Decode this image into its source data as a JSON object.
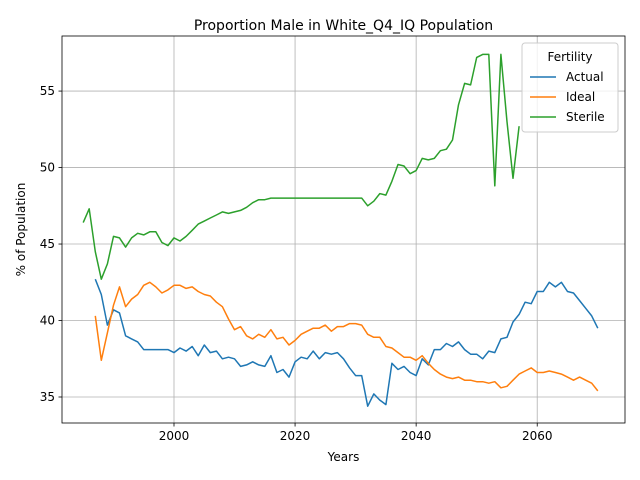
{
  "chart_data": {
    "type": "line",
    "title": "Proportion Male in White_Q4_IQ Population",
    "xlabel": "Years",
    "ylabel": "% of Population",
    "xlim": [
      1981.5,
      2074.5
    ],
    "ylim": [
      33.3,
      58.6
    ],
    "x_ticks": [
      2000,
      2020,
      2040,
      2060
    ],
    "y_ticks": [
      35,
      40,
      45,
      50,
      55
    ],
    "grid": true,
    "legend": {
      "title": "Fertility",
      "position": "top-right"
    },
    "series": [
      {
        "name": "Actual",
        "color": "#1f77b4",
        "x": [
          1987,
          1988,
          1989,
          1990,
          1991,
          1992,
          1993,
          1994,
          1995,
          1996,
          1997,
          1998,
          1999,
          2000,
          2001,
          2002,
          2003,
          2004,
          2005,
          2006,
          2007,
          2008,
          2009,
          2010,
          2011,
          2012,
          2013,
          2014,
          2015,
          2016,
          2017,
          2018,
          2019,
          2020,
          2021,
          2022,
          2023,
          2024,
          2025,
          2026,
          2027,
          2028,
          2029,
          2030,
          2031,
          2032,
          2033,
          2034,
          2035,
          2036,
          2037,
          2038,
          2039,
          2040,
          2041,
          2042,
          2043,
          2044,
          2045,
          2046,
          2047,
          2048,
          2049,
          2050,
          2051,
          2052,
          2053,
          2054,
          2055,
          2056,
          2057,
          2058,
          2059,
          2060,
          2061,
          2062,
          2063,
          2064,
          2065,
          2066,
          2067,
          2068,
          2069,
          2070
        ],
        "y": [
          42.7,
          41.7,
          39.7,
          40.7,
          40.5,
          39.0,
          38.8,
          38.6,
          38.1,
          38.1,
          38.1,
          38.1,
          38.1,
          37.9,
          38.2,
          38.0,
          38.3,
          37.7,
          38.4,
          37.9,
          38.0,
          37.5,
          37.6,
          37.5,
          37.0,
          37.1,
          37.3,
          37.1,
          37.0,
          37.7,
          36.6,
          36.8,
          36.3,
          37.3,
          37.6,
          37.5,
          38.0,
          37.5,
          37.9,
          37.8,
          37.9,
          37.5,
          36.9,
          36.4,
          36.4,
          34.4,
          35.2,
          34.8,
          34.5,
          37.2,
          36.8,
          37.0,
          36.6,
          36.4,
          37.5,
          37.1,
          38.1,
          38.1,
          38.5,
          38.3,
          38.6,
          38.1,
          37.8,
          37.8,
          37.5,
          38.0,
          37.9,
          38.8,
          38.9,
          39.9,
          40.4,
          41.2,
          41.1,
          41.9,
          41.9,
          42.5,
          42.2,
          42.5,
          41.9,
          41.8,
          41.3,
          40.8,
          40.3,
          39.5
        ]
      },
      {
        "name": "Ideal",
        "color": "#ff7f0e",
        "x": [
          1987,
          1988,
          1989,
          1990,
          1991,
          1992,
          1993,
          1994,
          1995,
          1996,
          1997,
          1998,
          1999,
          2000,
          2001,
          2002,
          2003,
          2004,
          2005,
          2006,
          2007,
          2008,
          2009,
          2010,
          2011,
          2012,
          2013,
          2014,
          2015,
          2016,
          2017,
          2018,
          2019,
          2020,
          2021,
          2022,
          2023,
          2024,
          2025,
          2026,
          2027,
          2028,
          2029,
          2030,
          2031,
          2032,
          2033,
          2034,
          2035,
          2036,
          2037,
          2038,
          2039,
          2040,
          2041,
          2042,
          2043,
          2044,
          2045,
          2046,
          2047,
          2048,
          2049,
          2050,
          2051,
          2052,
          2053,
          2054,
          2055,
          2056,
          2057,
          2058,
          2059,
          2060,
          2061,
          2062,
          2063,
          2064,
          2065,
          2066,
          2067,
          2068,
          2069,
          2070
        ],
        "y": [
          40.3,
          37.4,
          39.2,
          41.0,
          42.2,
          40.9,
          41.4,
          41.7,
          42.3,
          42.5,
          42.2,
          41.8,
          42.0,
          42.3,
          42.3,
          42.1,
          42.2,
          41.9,
          41.7,
          41.6,
          41.2,
          40.9,
          40.1,
          39.4,
          39.6,
          39.0,
          38.8,
          39.1,
          38.9,
          39.4,
          38.8,
          38.9,
          38.4,
          38.7,
          39.1,
          39.3,
          39.5,
          39.5,
          39.7,
          39.3,
          39.6,
          39.6,
          39.8,
          39.8,
          39.7,
          39.1,
          38.9,
          38.9,
          38.3,
          38.2,
          37.9,
          37.6,
          37.6,
          37.4,
          37.7,
          37.2,
          36.8,
          36.5,
          36.3,
          36.2,
          36.3,
          36.1,
          36.1,
          36.0,
          36.0,
          35.9,
          36.0,
          35.6,
          35.7,
          36.1,
          36.5,
          36.7,
          36.9,
          36.6,
          36.6,
          36.7,
          36.6,
          36.5,
          36.3,
          36.1,
          36.3,
          36.1,
          35.9,
          35.4
        ]
      },
      {
        "name": "Sterile",
        "color": "#2ca02c",
        "x": [
          1985,
          1986,
          1987,
          1988,
          1989,
          1990,
          1991,
          1992,
          1993,
          1994,
          1995,
          1996,
          1997,
          1998,
          1999,
          2000,
          2001,
          2002,
          2003,
          2004,
          2005,
          2006,
          2007,
          2008,
          2009,
          2010,
          2011,
          2012,
          2013,
          2014,
          2015,
          2016,
          2017,
          2018,
          2019,
          2020,
          2021,
          2022,
          2023,
          2024,
          2025,
          2026,
          2027,
          2028,
          2029,
          2030,
          2031,
          2032,
          2033,
          2034,
          2035,
          2036,
          2037,
          2038,
          2039,
          2040,
          2041,
          2042,
          2043,
          2044,
          2045,
          2046,
          2047,
          2048,
          2049,
          2050,
          2051,
          2052,
          2053,
          2054,
          2055,
          2056,
          2057
        ],
        "y": [
          46.4,
          47.3,
          44.5,
          42.7,
          43.7,
          45.5,
          45.4,
          44.8,
          45.4,
          45.7,
          45.6,
          45.8,
          45.8,
          45.1,
          44.9,
          45.4,
          45.2,
          45.5,
          45.9,
          46.3,
          46.5,
          46.7,
          46.9,
          47.1,
          47.0,
          47.1,
          47.2,
          47.4,
          47.7,
          47.9,
          47.9,
          48.0,
          48.0,
          48.0,
          48.0,
          48.0,
          48.0,
          48.0,
          48.0,
          48.0,
          48.0,
          48.0,
          48.0,
          48.0,
          48.0,
          48.0,
          48.0,
          47.5,
          47.8,
          48.3,
          48.2,
          49.1,
          50.2,
          50.1,
          49.6,
          49.8,
          50.6,
          50.5,
          50.6,
          51.1,
          51.2,
          51.8,
          54.1,
          55.5,
          55.4,
          57.2,
          57.4,
          57.4,
          48.8,
          57.4,
          53.0,
          49.3,
          52.7
        ]
      }
    ]
  }
}
